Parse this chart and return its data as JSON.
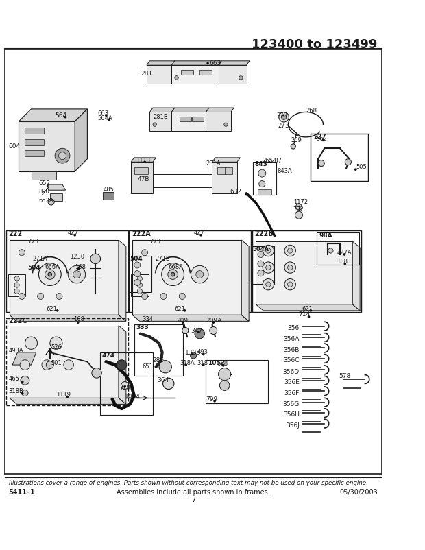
{
  "title": "123400 to 123499",
  "footer_italic": "Illustrations cover a range of engines. Parts shown without corresponding text may not be used on your specific engine.",
  "footer_left": "5411–1",
  "footer_center": "Assemblies include all parts shown in frames.",
  "footer_page": "7",
  "footer_right": "05/30/2003",
  "bg_color": "#ffffff",
  "line_color": "#1a1a1a",
  "dashed_line_color": "#555555"
}
